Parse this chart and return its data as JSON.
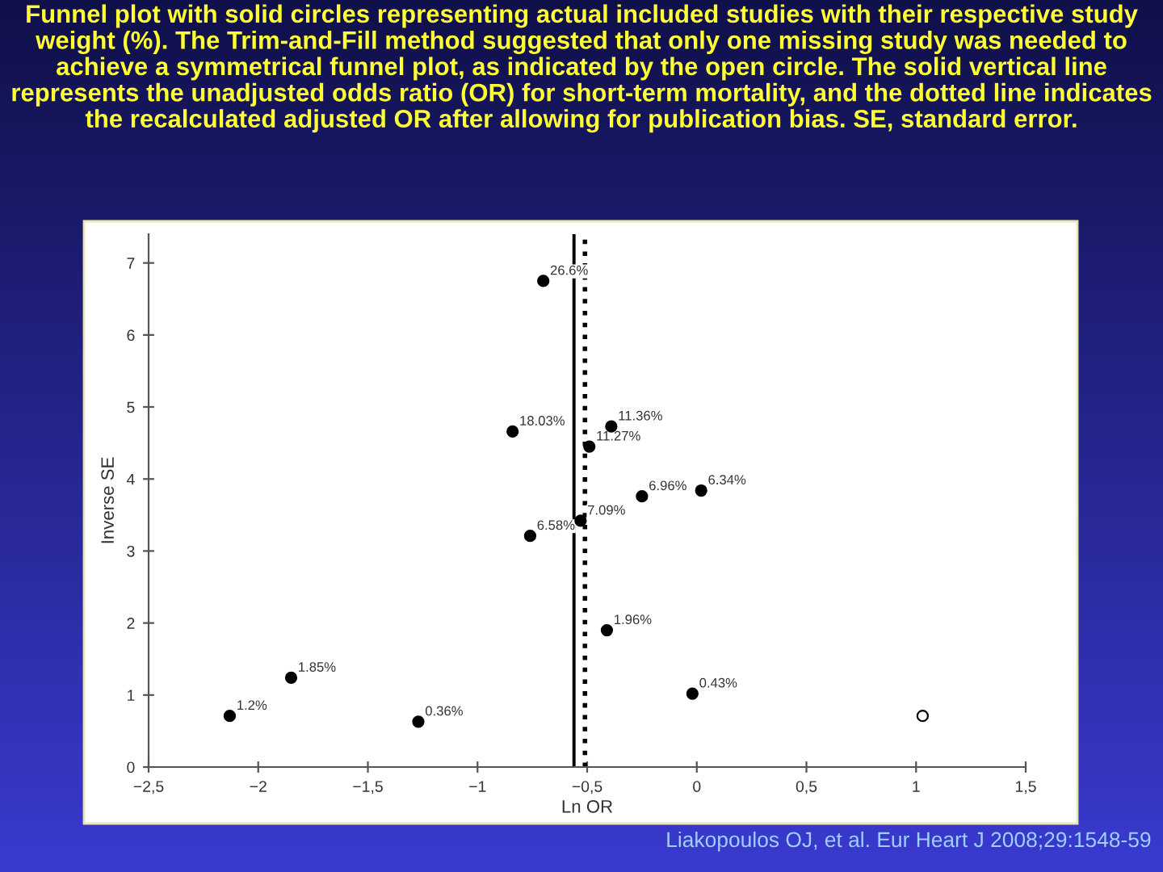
{
  "chart_data": {
    "type": "scatter",
    "title": "Funnel plot with solid circles representing actual included studies with their respective study weight (%). The Trim-and-Fill method suggested that only one missing study was needed to achieve a symmetrical funnel plot, as indicated by the open circle. The solid vertical line represents the unadjusted odds ratio (OR) for short-term mortality, and the dotted line indicates the recalculated adjusted OR after allowing for publication bias. SE, standard error.",
    "xlabel": "Ln OR",
    "ylabel": "Inverse SE",
    "series": [
      {
        "color": "#000000",
        "marker": "circle",
        "x": [
          -0.7,
          -0.84,
          -0.39,
          -0.49,
          -0.25,
          0.02,
          -0.53,
          -0.76,
          -0.41,
          -0.02,
          -2.13,
          -1.85,
          -1.27
        ],
        "values": [
          6.75,
          4.66,
          4.73,
          4.45,
          3.76,
          3.84,
          3.42,
          3.21,
          1.9,
          1.02,
          0.71,
          1.24,
          0.63
        ]
      },
      {
        "color": "#ffffff",
        "marker": "circle",
        "x": [
          1.03
        ],
        "values": [
          0.71
        ]
      }
    ],
    "xlim": [
      -2.5,
      1.5
    ],
    "ylim": [
      0,
      7.4
    ],
    "xticks": [
      {
        "value": -2.5,
        "label": "−2,5"
      },
      {
        "value": -2,
        "label": "−2"
      },
      {
        "value": -1.5,
        "label": "−1,5"
      },
      {
        "value": -1,
        "label": "−1"
      },
      {
        "value": -0.5,
        "label": "−0,5"
      },
      0,
      {
        "value": 0.5,
        "label": "0,5"
      },
      1,
      {
        "value": 1.5,
        "label": "1,5"
      }
    ],
    "yticks": [
      0,
      1,
      2,
      3,
      4,
      5,
      6,
      7
    ],
    "ref_lines": [
      {
        "axis": "x",
        "value": -0.56,
        "color": "#000000",
        "line_style": "solid"
      },
      {
        "axis": "x",
        "value": -0.51,
        "color": "#000000",
        "line_style": "dotted"
      }
    ],
    "annotations": [
      "Liakopoulos OJ, et al. Eur Heart J 2008;29:1548-59",
      {
        "text": "26.6%",
        "x": -0.7,
        "y": 6.75
      },
      {
        "text": "18.03%",
        "x": -0.84,
        "y": 4.66
      },
      {
        "text": "11.36%",
        "x": -0.39,
        "y": 4.73
      },
      {
        "text": "11.27%",
        "x": -0.49,
        "y": 4.45
      },
      {
        "text": "6.96%",
        "x": -0.25,
        "y": 3.76
      },
      {
        "text": "6.34%",
        "x": 0.02,
        "y": 3.84
      },
      {
        "text": "7.09%",
        "x": -0.53,
        "y": 3.42
      },
      {
        "text": "6.58%",
        "x": -0.76,
        "y": 3.21
      },
      {
        "text": "1.96%",
        "x": -0.41,
        "y": 1.9
      },
      {
        "text": "0.43%",
        "x": -0.02,
        "y": 1.02
      },
      {
        "text": "1.2%",
        "x": -2.13,
        "y": 0.71
      },
      {
        "text": "1.85%",
        "x": -1.85,
        "y": 1.24
      },
      {
        "text": "0.36%",
        "x": -1.27,
        "y": 0.63
      }
    ],
    "grid": false,
    "legend": false
  }
}
